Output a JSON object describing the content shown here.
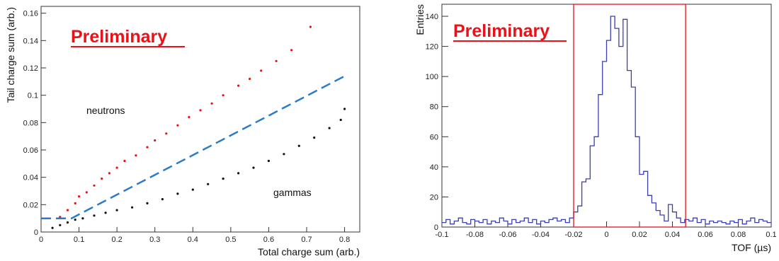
{
  "chart_data": [
    {
      "type": "scatter",
      "title": "",
      "xlabel": "Total charge sum (arb.)",
      "ylabel": "Tail charge sum (arb.)",
      "xlim": [
        0,
        0.84
      ],
      "ylim": [
        0,
        0.165
      ],
      "x_ticks": [
        "0",
        "0.1",
        "0.2",
        "0.3",
        "0.4",
        "0.5",
        "0.6",
        "0.7",
        "0.8"
      ],
      "y_ticks": [
        "0",
        "0.02",
        "0.04",
        "0.06",
        "0.08",
        "0.1",
        "0.12",
        "0.14",
        "0.16"
      ],
      "watermark": "Preliminary",
      "watermark_color": "#e8121b",
      "annotations": [
        "neutrons",
        "gammas"
      ],
      "series": [
        {
          "group": "neutrons",
          "color": "#ee1111",
          "values": [
            [
              0.05,
              0.011
            ],
            [
              0.07,
              0.016
            ],
            [
              0.09,
              0.021
            ],
            [
              0.1,
              0.026
            ],
            [
              0.12,
              0.029
            ],
            [
              0.14,
              0.034
            ],
            [
              0.16,
              0.039
            ],
            [
              0.18,
              0.043
            ],
            [
              0.2,
              0.047
            ],
            [
              0.22,
              0.052
            ],
            [
              0.25,
              0.056
            ],
            [
              0.28,
              0.062
            ],
            [
              0.3,
              0.067
            ],
            [
              0.33,
              0.072
            ],
            [
              0.36,
              0.078
            ],
            [
              0.39,
              0.084
            ],
            [
              0.42,
              0.089
            ],
            [
              0.45,
              0.094
            ],
            [
              0.48,
              0.1
            ],
            [
              0.52,
              0.107
            ],
            [
              0.55,
              0.112
            ],
            [
              0.58,
              0.118
            ],
            [
              0.62,
              0.125
            ],
            [
              0.66,
              0.133
            ],
            [
              0.71,
              0.15
            ]
          ]
        },
        {
          "group": "gammas",
          "color": "#111111",
          "values": [
            [
              0.03,
              0.003
            ],
            [
              0.05,
              0.005
            ],
            [
              0.07,
              0.007
            ],
            [
              0.09,
              0.009
            ],
            [
              0.11,
              0.01
            ],
            [
              0.14,
              0.012
            ],
            [
              0.17,
              0.014
            ],
            [
              0.2,
              0.016
            ],
            [
              0.24,
              0.018
            ],
            [
              0.28,
              0.021
            ],
            [
              0.32,
              0.024
            ],
            [
              0.36,
              0.028
            ],
            [
              0.4,
              0.031
            ],
            [
              0.44,
              0.035
            ],
            [
              0.48,
              0.039
            ],
            [
              0.52,
              0.043
            ],
            [
              0.56,
              0.047
            ],
            [
              0.6,
              0.052
            ],
            [
              0.64,
              0.057
            ],
            [
              0.68,
              0.063
            ],
            [
              0.72,
              0.069
            ],
            [
              0.76,
              0.076
            ],
            [
              0.79,
              0.082
            ],
            [
              0.8,
              0.09
            ]
          ]
        }
      ],
      "cut_line": {
        "color": "#2b7bc9",
        "style": "dashed",
        "points": [
          [
            0,
            0.01
          ],
          [
            0.08,
            0.01
          ],
          [
            0.8,
            0.114
          ]
        ]
      }
    },
    {
      "type": "bar",
      "title": "",
      "xlabel": "TOF (µs)",
      "ylabel": "Entries",
      "xlim": [
        -0.1,
        0.1
      ],
      "ylim": [
        0,
        148
      ],
      "x_ticks": [
        "-0.1",
        "-0.08",
        "-0.06",
        "-0.04",
        "-0.02",
        "0",
        "0.02",
        "0.04",
        "0.06",
        "0.08",
        "0.1"
      ],
      "y_ticks": [
        "0",
        "20",
        "40",
        "60",
        "80",
        "100",
        "120",
        "140"
      ],
      "watermark": "Preliminary",
      "watermark_color": "#e8121b",
      "histogram_color": "#3a3fb0",
      "selection_box": {
        "x_range": [
          -0.02,
          0.048
        ],
        "color": "#e8121b"
      },
      "bin_edges_start": -0.1,
      "bin_width": 0.0025,
      "values": [
        3,
        5,
        2,
        4,
        6,
        3,
        2,
        5,
        4,
        3,
        5,
        2,
        4,
        3,
        6,
        4,
        2,
        5,
        3,
        4,
        6,
        3,
        5,
        2,
        4,
        3,
        5,
        6,
        4,
        5,
        3,
        6,
        10,
        14,
        30,
        32,
        54,
        60,
        88,
        110,
        124,
        140,
        132,
        120,
        138,
        104,
        93,
        60,
        35,
        37,
        21,
        16,
        11,
        8,
        4,
        15,
        10,
        6,
        3,
        5,
        4,
        6,
        3,
        5,
        2,
        4,
        3,
        4,
        3,
        2,
        4,
        3,
        5,
        2,
        4,
        6,
        3,
        5,
        4,
        3
      ]
    }
  ]
}
